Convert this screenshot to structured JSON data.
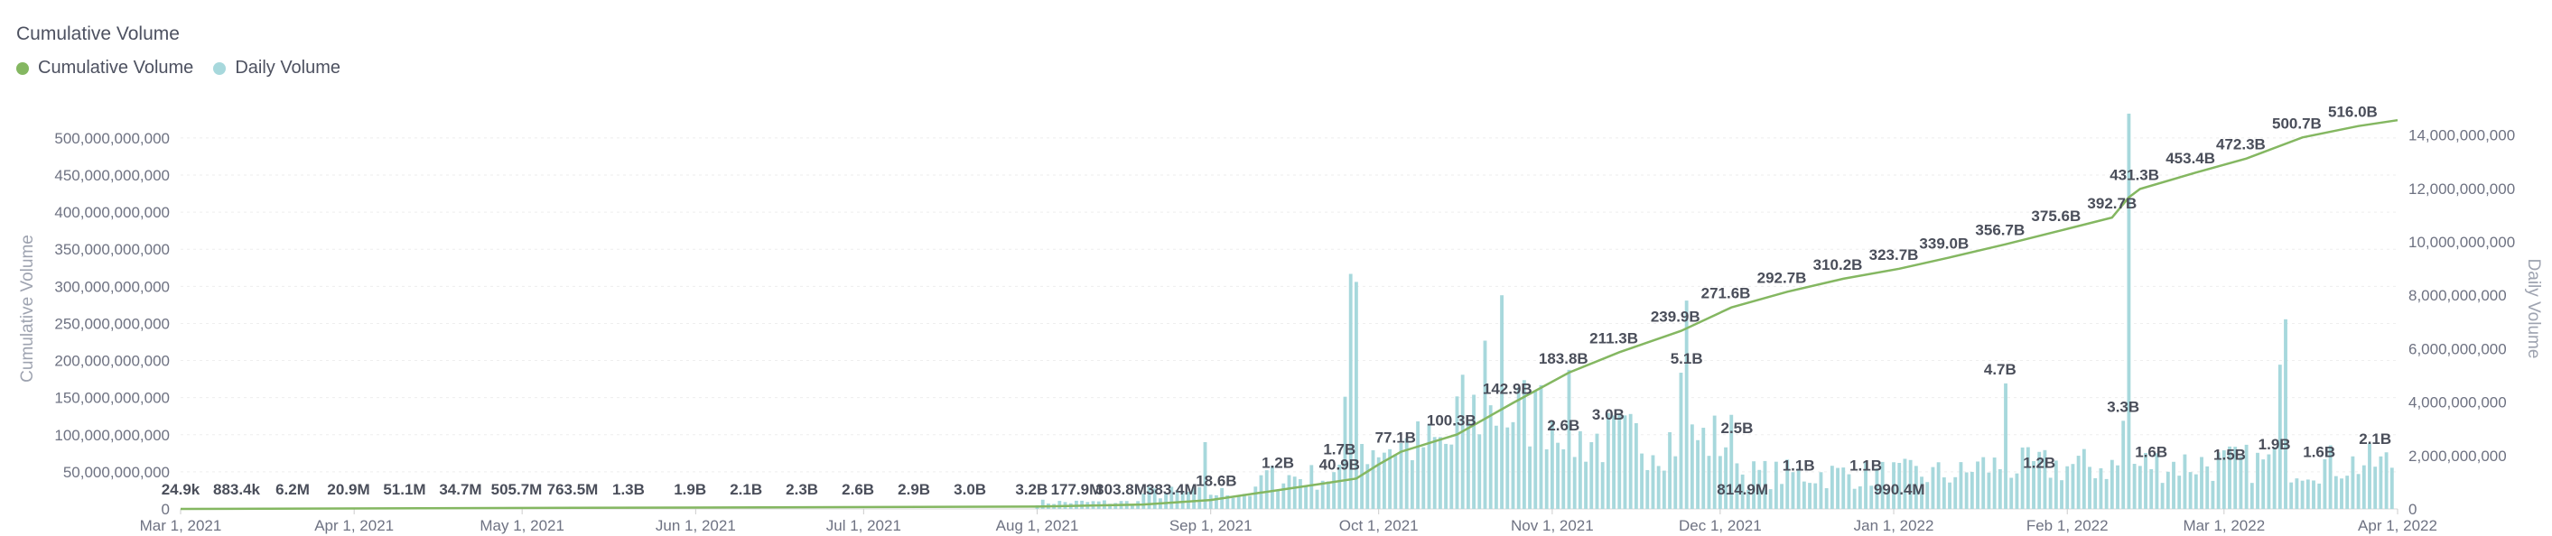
{
  "chart_data": {
    "type": "line+bar",
    "title": "Cumulative Volume",
    "legend": [
      {
        "name": "Cumulative Volume",
        "color": "#84b761"
      },
      {
        "name": "Daily Volume",
        "color": "#a7d8dc"
      }
    ],
    "legend_placement": "top-left",
    "grid": true,
    "y_left": {
      "label": "Cumulative Volume",
      "range": [
        0,
        540000000000
      ],
      "ticks": [
        "0",
        "50,000,000,000",
        "100,000,000,000",
        "150,000,000,000",
        "200,000,000,000",
        "250,000,000,000",
        "300,000,000,000",
        "350,000,000,000",
        "400,000,000,000",
        "450,000,000,000",
        "500,000,000,000"
      ]
    },
    "y_right": {
      "label": "Daily Volume",
      "range": [
        0,
        15000000000
      ],
      "ticks": [
        "0",
        "2,000,000,000",
        "4,000,000,000",
        "6,000,000,000",
        "8,000,000,000",
        "10,000,000,000",
        "12,000,000,000",
        "14,000,000,000"
      ]
    },
    "x_axis": {
      "range": [
        "2021-03-01",
        "2022-04-01"
      ],
      "ticks": [
        {
          "date": "2021-03-01",
          "label": "Mar 1, 2021"
        },
        {
          "date": "2021-04-01",
          "label": "Apr 1, 2021"
        },
        {
          "date": "2021-05-01",
          "label": "May 1, 2021"
        },
        {
          "date": "2021-06-01",
          "label": "Jun 1, 2021"
        },
        {
          "date": "2021-07-01",
          "label": "Jul 1, 2021"
        },
        {
          "date": "2021-08-01",
          "label": "Aug 1, 2021"
        },
        {
          "date": "2021-09-01",
          "label": "Sep 1, 2021"
        },
        {
          "date": "2021-10-01",
          "label": "Oct 1, 2021"
        },
        {
          "date": "2021-11-01",
          "label": "Nov 1, 2021"
        },
        {
          "date": "2021-12-01",
          "label": "Dec 1, 2021"
        },
        {
          "date": "2022-01-01",
          "label": "Jan 1, 2022"
        },
        {
          "date": "2022-02-01",
          "label": "Feb 1, 2022"
        },
        {
          "date": "2022-03-01",
          "label": "Mar 1, 2022"
        },
        {
          "date": "2022-04-01",
          "label": "Apr 1, 2022"
        }
      ]
    },
    "cumulative_labels": [
      {
        "date": "2021-03-01",
        "value": 24900,
        "label": "24.9k"
      },
      {
        "date": "2021-03-11",
        "value": 883400,
        "label": "883.4k"
      },
      {
        "date": "2021-03-21",
        "value": 6200000,
        "label": "6.2M"
      },
      {
        "date": "2021-03-31",
        "value": 20900000,
        "label": "20.9M"
      },
      {
        "date": "2021-04-10",
        "value": 51100000,
        "label": "51.1M"
      },
      {
        "date": "2021-04-20",
        "value": 34700000,
        "label": "34.7M"
      },
      {
        "date": "2021-04-30",
        "value": 505700000,
        "label": "505.7M"
      },
      {
        "date": "2021-05-10",
        "value": 763500000,
        "label": "763.5M"
      },
      {
        "date": "2021-05-20",
        "value": 1300000000,
        "label": "1.3B"
      },
      {
        "date": "2021-05-31",
        "value": 1900000000,
        "label": "1.9B"
      },
      {
        "date": "2021-06-10",
        "value": 2100000000,
        "label": "2.1B"
      },
      {
        "date": "2021-06-20",
        "value": 2300000000,
        "label": "2.3B"
      },
      {
        "date": "2021-06-30",
        "value": 2600000000,
        "label": "2.6B"
      },
      {
        "date": "2021-07-10",
        "value": 2900000000,
        "label": "2.9B"
      },
      {
        "date": "2021-07-20",
        "value": 3000000000,
        "label": "3.0B"
      },
      {
        "date": "2021-07-31",
        "value": 3200000000,
        "label": "3.2B"
      },
      {
        "date": "2021-08-08",
        "value": 177900000,
        "label": "177.9M"
      },
      {
        "date": "2021-08-16",
        "value": 303800000,
        "label": "303.8M"
      },
      {
        "date": "2021-08-25",
        "value": 383400000,
        "label": "383.4M"
      },
      {
        "date": "2021-09-02",
        "value": 18600000000,
        "label": "18.6B"
      },
      {
        "date": "2021-09-13",
        "value": 1200000000,
        "label": "1.2B"
      },
      {
        "date": "2021-09-24",
        "value": 1700000000,
        "label": "1.7B"
      },
      {
        "date": "2021-09-24",
        "value": 40900000000,
        "label": "40.9B"
      },
      {
        "date": "2021-10-04",
        "value": 77100000000,
        "label": "77.1B"
      },
      {
        "date": "2021-10-14",
        "value": 100300000000,
        "label": "100.3B"
      },
      {
        "date": "2021-10-24",
        "value": 142900000000,
        "label": "142.9B"
      },
      {
        "date": "2021-11-03",
        "value": 183800000000,
        "label": "183.8B"
      },
      {
        "date": "2021-11-03",
        "value": 2600000000,
        "label": "2.6B"
      },
      {
        "date": "2021-11-11",
        "value": 3000000000,
        "label": "3.0B"
      },
      {
        "date": "2021-11-12",
        "value": 211300000000,
        "label": "211.3B"
      },
      {
        "date": "2021-11-25",
        "value": 5100000000,
        "label": "5.1B"
      },
      {
        "date": "2021-11-23",
        "value": 239900000000,
        "label": "239.9B"
      },
      {
        "date": "2021-12-02",
        "value": 271600000000,
        "label": "271.6B"
      },
      {
        "date": "2021-12-04",
        "value": 2500000000,
        "label": "2.5B"
      },
      {
        "date": "2021-12-05",
        "value": 814900000,
        "label": "814.9M"
      },
      {
        "date": "2021-12-12",
        "value": 292700000000,
        "label": "292.7B"
      },
      {
        "date": "2021-12-15",
        "value": 1100000000,
        "label": "1.1B"
      },
      {
        "date": "2021-12-22",
        "value": 310200000000,
        "label": "310.2B"
      },
      {
        "date": "2021-12-27",
        "value": 1100000000,
        "label": "1.1B"
      },
      {
        "date": "2022-01-01",
        "value": 323700000000,
        "label": "323.7B"
      },
      {
        "date": "2022-01-02",
        "value": 990400000,
        "label": "990.4M"
      },
      {
        "date": "2022-01-10",
        "value": 339000000000,
        "label": "339.0B"
      },
      {
        "date": "2022-01-20",
        "value": 356700000000,
        "label": "356.7B"
      },
      {
        "date": "2022-01-20",
        "value": 4700000000,
        "label": "4.7B"
      },
      {
        "date": "2022-01-27",
        "value": 1200000000,
        "label": "1.2B"
      },
      {
        "date": "2022-01-30",
        "value": 375600000000,
        "label": "375.6B"
      },
      {
        "date": "2022-02-09",
        "value": 392700000000,
        "label": "392.7B"
      },
      {
        "date": "2022-02-11",
        "value": 3300000000,
        "label": "3.3B"
      },
      {
        "date": "2022-02-13",
        "value": 431300000000,
        "label": "431.3B"
      },
      {
        "date": "2022-02-16",
        "value": 1600000000,
        "label": "1.6B"
      },
      {
        "date": "2022-02-23",
        "value": 453400000000,
        "label": "453.4B"
      },
      {
        "date": "2022-03-02",
        "value": 1500000000,
        "label": "1.5B"
      },
      {
        "date": "2022-03-04",
        "value": 472300000000,
        "label": "472.3B"
      },
      {
        "date": "2022-03-10",
        "value": 1900000000,
        "label": "1.9B"
      },
      {
        "date": "2022-03-14",
        "value": 500700000000,
        "label": "500.7B"
      },
      {
        "date": "2022-03-18",
        "value": 1600000000,
        "label": "1.6B"
      },
      {
        "date": "2022-03-24",
        "value": 516000000000,
        "label": "516.0B"
      },
      {
        "date": "2022-03-28",
        "value": 2100000000,
        "label": "2.1B"
      }
    ],
    "cumulative_series": [
      [
        "2021-03-01",
        0
      ],
      [
        "2021-08-01",
        3200000000
      ],
      [
        "2021-08-20",
        6000000000
      ],
      [
        "2021-09-01",
        12000000000
      ],
      [
        "2021-09-10",
        22000000000
      ],
      [
        "2021-09-20",
        33000000000
      ],
      [
        "2021-09-27",
        41000000000
      ],
      [
        "2021-10-01",
        60000000000
      ],
      [
        "2021-10-05",
        77100000000
      ],
      [
        "2021-10-15",
        100300000000
      ],
      [
        "2021-10-25",
        142900000000
      ],
      [
        "2021-11-04",
        183800000000
      ],
      [
        "2021-11-13",
        211300000000
      ],
      [
        "2021-11-24",
        239900000000
      ],
      [
        "2021-12-03",
        271600000000
      ],
      [
        "2021-12-13",
        292700000000
      ],
      [
        "2021-12-23",
        310200000000
      ],
      [
        "2022-01-02",
        323700000000
      ],
      [
        "2022-01-11",
        339000000000
      ],
      [
        "2022-01-21",
        356700000000
      ],
      [
        "2022-01-31",
        375600000000
      ],
      [
        "2022-02-09",
        392700000000
      ],
      [
        "2022-02-12",
        420000000000
      ],
      [
        "2022-02-14",
        431300000000
      ],
      [
        "2022-02-24",
        453400000000
      ],
      [
        "2022-03-05",
        472300000000
      ],
      [
        "2022-03-15",
        500700000000
      ],
      [
        "2022-03-25",
        516000000000
      ],
      [
        "2022-04-01",
        524000000000
      ]
    ],
    "daily_peaks": [
      [
        "2021-08-31",
        2500000000
      ],
      [
        "2021-09-25",
        4200000000
      ],
      [
        "2021-09-26",
        8800000000
      ],
      [
        "2021-09-27",
        8500000000
      ],
      [
        "2021-10-20",
        6300000000
      ],
      [
        "2021-10-23",
        8000000000
      ],
      [
        "2021-10-29",
        4400000000
      ],
      [
        "2021-11-24",
        5100000000
      ],
      [
        "2021-11-25",
        7800000000
      ],
      [
        "2022-01-21",
        4700000000
      ],
      [
        "2022-02-11",
        3300000000
      ],
      [
        "2022-02-12",
        14800000000
      ],
      [
        "2022-03-11",
        5400000000
      ],
      [
        "2022-03-12",
        7100000000
      ]
    ]
  }
}
